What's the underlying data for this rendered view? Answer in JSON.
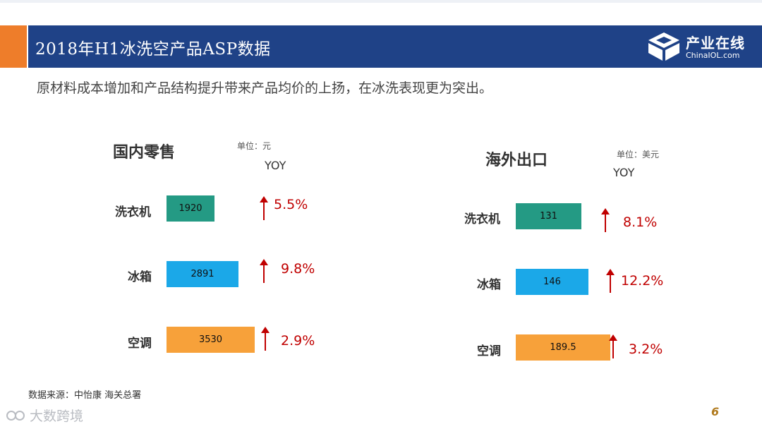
{
  "header": {
    "title": "2018年H1冰洗空产品ASP数据",
    "logo_cn": "产业在线",
    "logo_en": "ChinaIOL.com"
  },
  "subtitle": "原材料成本增加和产品结构提升带来产品均价的上扬，在冰洗表现更为突出。",
  "colors": {
    "title_bar": "#1f4287",
    "accent": "#ee7d2a",
    "washer": "#249a84",
    "fridge": "#1ba8e8",
    "ac": "#f7a13a",
    "yoy_red": "#c00000"
  },
  "chart_data": [
    {
      "type": "bar",
      "orientation": "horizontal",
      "title": "国内零售",
      "unit_label": "单位：元",
      "yoy_header": "YOY",
      "categories": [
        "洗衣机",
        "冰箱",
        "空调"
      ],
      "values": [
        1920,
        2891,
        3530
      ],
      "value_labels": [
        "1920",
        "2891",
        "3530"
      ],
      "yoy": [
        "5.5%",
        "9.8%",
        "2.9%"
      ],
      "yoy_direction": [
        "up",
        "up",
        "up"
      ],
      "colors": [
        "#249a84",
        "#1ba8e8",
        "#f7a13a"
      ],
      "xlim": [
        0,
        3800
      ]
    },
    {
      "type": "bar",
      "orientation": "horizontal",
      "title": "海外出口",
      "unit_label": "单位：美元",
      "yoy_header": "YOY",
      "categories": [
        "洗衣机",
        "冰箱",
        "空调"
      ],
      "values": [
        131,
        146,
        189.5
      ],
      "value_labels": [
        "131",
        "146",
        "189.5"
      ],
      "yoy": [
        "8.1%",
        "12.2%",
        "3.2%"
      ],
      "yoy_direction": [
        "up",
        "up",
        "up"
      ],
      "colors": [
        "#249a84",
        "#1ba8e8",
        "#f7a13a"
      ],
      "xlim": [
        0,
        196
      ]
    }
  ],
  "footer": {
    "source": "数据来源：中怡康 海关总署",
    "page_number": "6",
    "watermark": "大数跨境"
  }
}
